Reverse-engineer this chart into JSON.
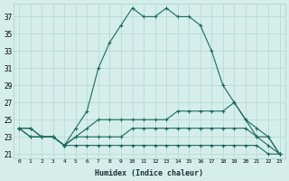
{
  "xlabel": "Humidex (Indice chaleur)",
  "hours": [
    0,
    1,
    2,
    3,
    4,
    5,
    6,
    7,
    8,
    9,
    10,
    11,
    12,
    13,
    14,
    15,
    16,
    17,
    18,
    19,
    20,
    21,
    22,
    23
  ],
  "line1": [
    24,
    24,
    23,
    23,
    22,
    24,
    26,
    31,
    34,
    36,
    38,
    37,
    37,
    38,
    37,
    37,
    36,
    33,
    29,
    27,
    25,
    24,
    23,
    21
  ],
  "line2": [
    24,
    24,
    23,
    23,
    22,
    23,
    24,
    25,
    25,
    25,
    25,
    25,
    25,
    25,
    26,
    26,
    26,
    26,
    26,
    27,
    25,
    23,
    23,
    21
  ],
  "line3": [
    24,
    23,
    23,
    23,
    22,
    23,
    23,
    23,
    23,
    23,
    24,
    24,
    24,
    24,
    24,
    24,
    24,
    24,
    24,
    24,
    24,
    23,
    22,
    21
  ],
  "line4": [
    24,
    23,
    23,
    23,
    22,
    22,
    22,
    22,
    22,
    22,
    22,
    22,
    22,
    22,
    22,
    22,
    22,
    22,
    22,
    22,
    22,
    22,
    21,
    21
  ],
  "line_color": "#1a6b5e",
  "bg_color": "#d5eeea",
  "grid_color": "#b0d8d0",
  "ylim_min": 20.5,
  "ylim_max": 38.5,
  "yticks": [
    21,
    23,
    25,
    27,
    29,
    31,
    33,
    35,
    37
  ],
  "xlim_min": -0.5,
  "xlim_max": 23.5
}
